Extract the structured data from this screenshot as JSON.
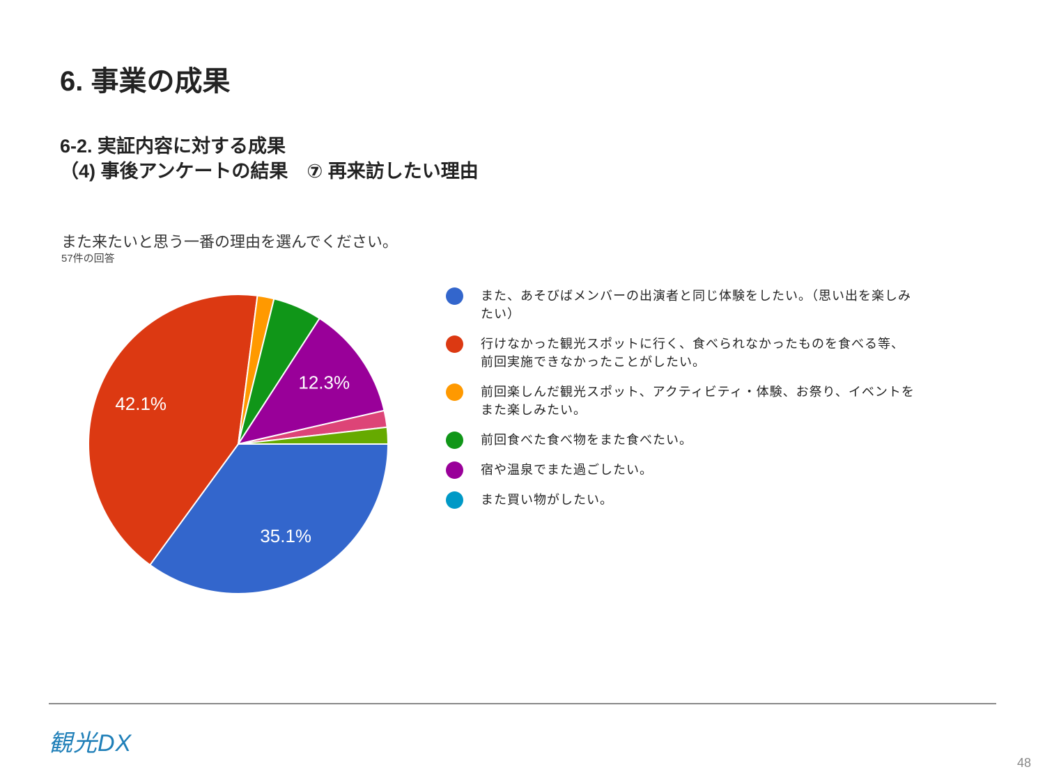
{
  "header": {
    "title": "6. 事業の成果",
    "subtitle_lines": [
      "6-2. 実証内容に対する成果",
      "（4) 事後アンケートの結果　⑦ 再来訪したい理由"
    ]
  },
  "chart_data": {
    "type": "pie",
    "title": "また来たいと思う一番の理由を選んでください。",
    "subtitle": "57件の回答",
    "categories": [
      "また、あそびばメンバーの出演者と同じ体験をしたい。（思い出を楽しみたい）",
      "行けなかった観光スポットに行く、食べられなかったものを食べる等、前回実施できなかったことがしたい。",
      "前回楽しんだ観光スポット、アクティビティ・体験、お祭り、イベントをまた楽しみたい。",
      "前回食べた食べ物をまた食べたい。",
      "宿や温泉でまた過ごしたい。",
      "また買い物がしたい。",
      null,
      null
    ],
    "values": [
      35.1,
      42.1,
      1.8,
      5.3,
      12.3,
      0,
      1.8,
      1.8
    ],
    "value_labels": [
      "35.1%",
      "42.1%",
      null,
      null,
      "12.3%",
      null,
      null,
      null
    ],
    "colors": [
      "#3366cc",
      "#dc3912",
      "#ff9900",
      "#109618",
      "#990099",
      "#0099c6",
      "#dd4477",
      "#66aa00"
    ]
  },
  "footer": {
    "logo": "観光DX",
    "page_number": "48"
  }
}
